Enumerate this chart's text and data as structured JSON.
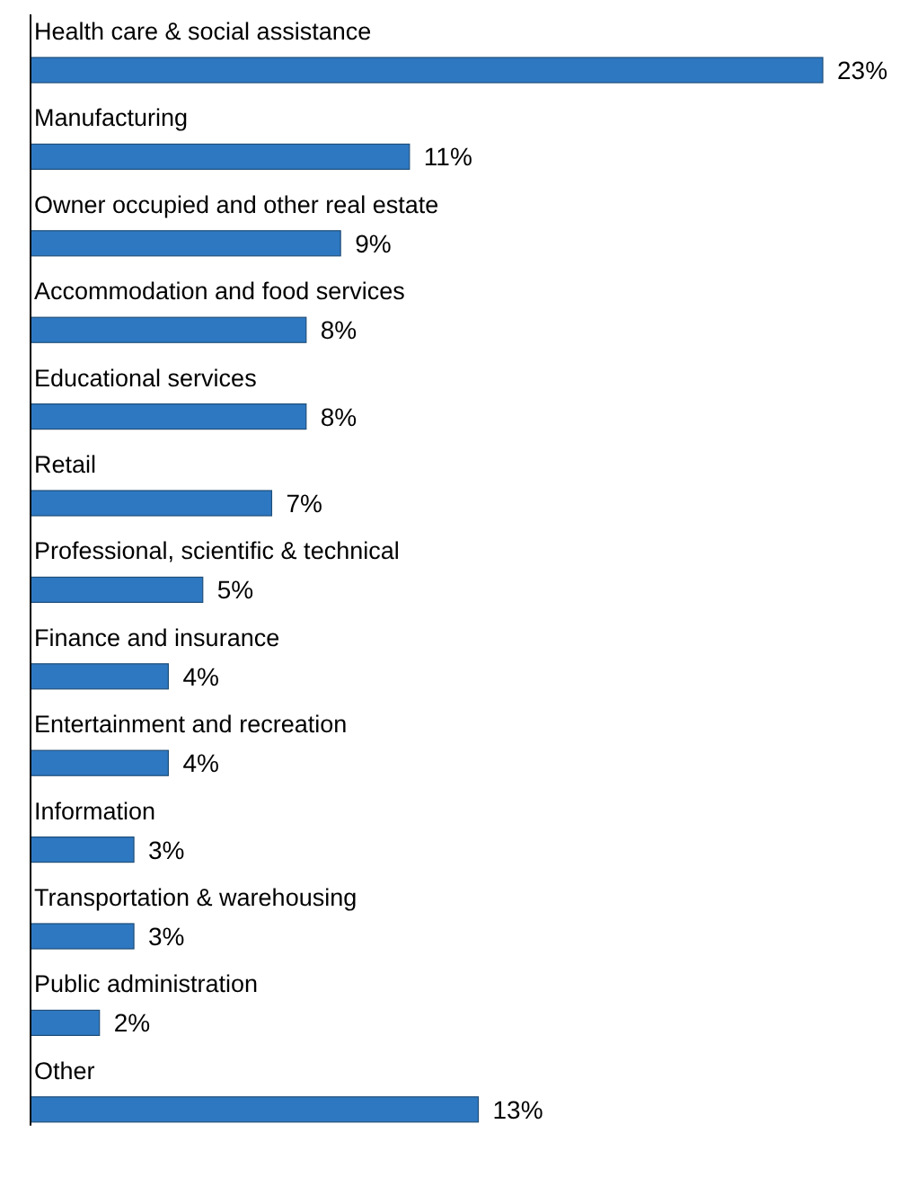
{
  "chart_data": {
    "type": "bar",
    "orientation": "horizontal",
    "categories": [
      "Health care & social assistance",
      "Manufacturing",
      "Owner occupied and other real estate",
      "Accommodation and food services",
      "Educational services",
      "Retail",
      "Professional, scientific & technical",
      "Finance and insurance",
      "Entertainment and recreation",
      "Information",
      "Transportation & warehousing",
      "Public administration",
      "Other"
    ],
    "values": [
      23,
      11,
      9,
      8,
      8,
      7,
      5,
      4,
      4,
      3,
      3,
      2,
      13
    ],
    "value_labels": [
      "23%",
      "11%",
      "9%",
      "8%",
      "8%",
      "7%",
      "5%",
      "4%",
      "4%",
      "3%",
      "3%",
      "2%",
      "13%"
    ],
    "color": "#2e78c2"
  }
}
